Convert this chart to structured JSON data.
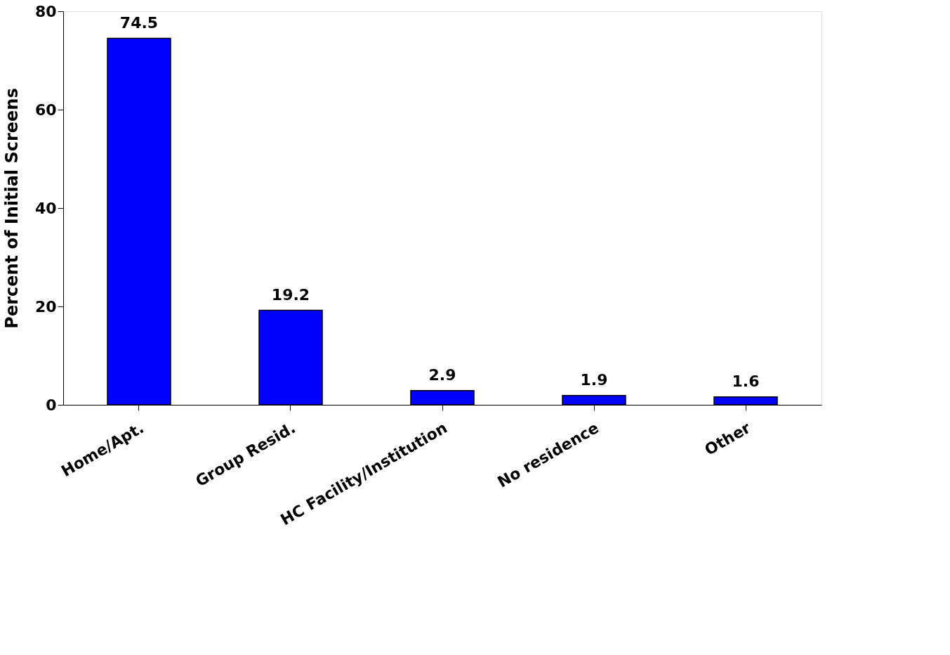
{
  "chart_data": {
    "type": "bar",
    "ylabel": "Percent of Initial Screens",
    "categories": [
      "Home/Apt.",
      "Group Resid.",
      "HC Facility/Institution",
      "No residence",
      "Other"
    ],
    "values": [
      74.5,
      19.2,
      2.9,
      1.9,
      1.6
    ],
    "color": "#0000ff",
    "ylim": [
      0,
      80
    ],
    "yticks": [
      0,
      20,
      40,
      60,
      80
    ],
    "data_labels": true,
    "grid": false
  }
}
